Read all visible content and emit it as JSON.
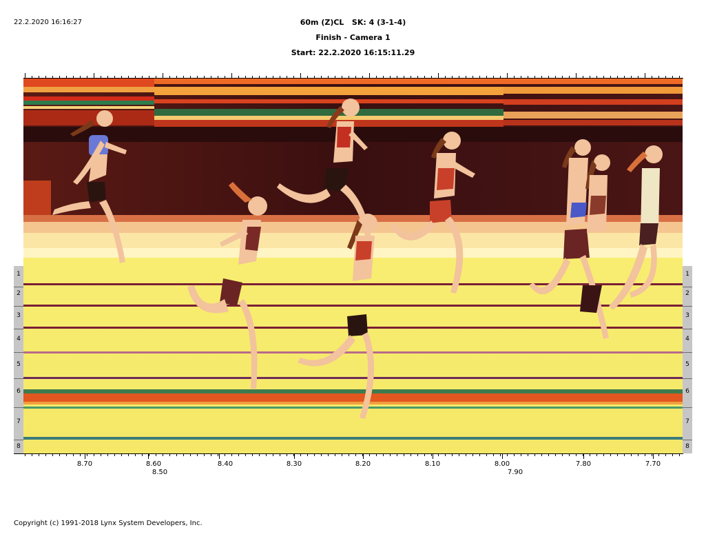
{
  "header": {
    "timestamp": "22.2.2020 16:16:27",
    "title": "60m (Z)CL   SK: 4 (3-1-4)",
    "subtitle": "Finish - Camera 1",
    "start": "Start: 22.2.2020 16:15:11.29"
  },
  "lanes": [
    "1",
    "2",
    "3",
    "4",
    "5",
    "6",
    "7",
    "8"
  ],
  "axis": {
    "upper_labels": [
      "8.70",
      "8.60",
      "8.40",
      "8.30",
      "8.20",
      "8.10",
      "8.00",
      "7.80",
      "7.70"
    ],
    "lower_labels": [
      "8.50",
      "7.90"
    ]
  },
  "footer": {
    "copyright": "Copyright (c) 1991-2018 Lynx System Developers, Inc."
  },
  "colors": {
    "track": "#f7ee6a",
    "backdrop": "#3e1212",
    "lane_line": "#7a1f35",
    "skin": "#f2c39c"
  }
}
